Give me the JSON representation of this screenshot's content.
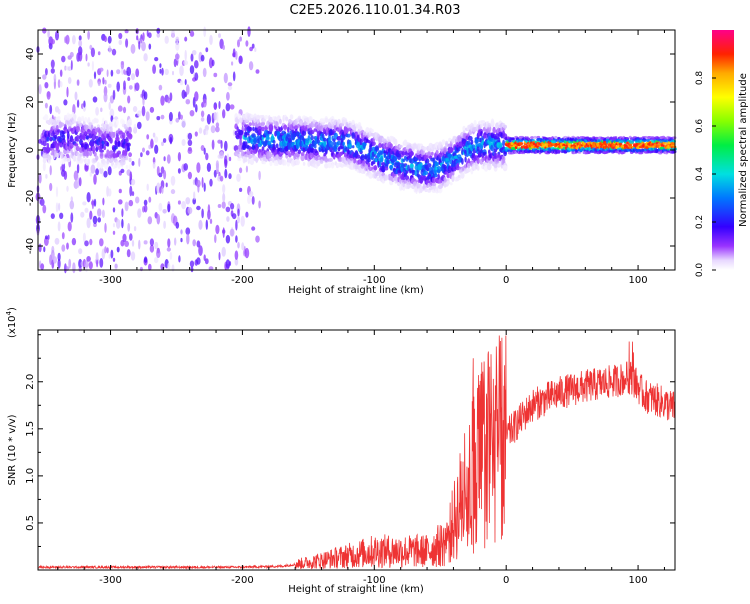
{
  "title": "C2E5.2026.110.01.34.R03",
  "chart_data": [
    {
      "type": "heatmap",
      "name": "spectrogram",
      "xlabel": "Height of straight line (km)",
      "ylabel": "Frequency (Hz)",
      "xlim": [
        -355,
        128
      ],
      "ylim": [
        -50,
        50
      ],
      "xticks": [
        -300,
        -200,
        -100,
        0,
        100
      ],
      "yticks": [
        -40,
        -20,
        0,
        20,
        40
      ],
      "noise_region_x": [
        -355,
        -180
      ],
      "signal_ridge": {
        "x": [
          -350,
          -330,
          -300,
          -280,
          -200,
          -180,
          -160,
          -140,
          -120,
          -100,
          -80,
          -60,
          -50,
          -40,
          -30,
          -20,
          -10,
          0,
          40,
          90,
          128
        ],
        "y": [
          4,
          5,
          2,
          3,
          5,
          4,
          4,
          3,
          3,
          -2,
          -6,
          -8,
          -7,
          -4,
          0,
          2,
          2,
          2,
          2,
          2,
          2
        ]
      },
      "colorbar": {
        "label": "Normalized spectral amplitude",
        "range": [
          0.0,
          1.0
        ],
        "ticks": [
          0.0,
          0.2,
          0.4,
          0.6,
          0.8
        ],
        "tick_labels": [
          "0.0",
          "0.2",
          "0.4",
          "0.6",
          "0.8"
        ]
      }
    },
    {
      "type": "line",
      "name": "snr",
      "xlabel": "Height of straight line (km)",
      "ylabel": "SNR (10 * v/v)",
      "multiplier_label": "(x10",
      "multiplier_exp": "4",
      "xlim": [
        -355,
        128
      ],
      "ylim": [
        0,
        2.55
      ],
      "xticks": [
        -300,
        -200,
        -100,
        0,
        100
      ],
      "yticks": [
        0.5,
        1.0,
        1.5,
        2.0
      ],
      "color": "#ee3333",
      "envelope": {
        "x": [
          -355,
          -300,
          -200,
          -170,
          -150,
          -120,
          -100,
          -80,
          -60,
          -45,
          -35,
          -25,
          -15,
          -5,
          5,
          20,
          40,
          60,
          80,
          95,
          105,
          115,
          128
        ],
        "y": [
          0.03,
          0.03,
          0.03,
          0.04,
          0.08,
          0.15,
          0.2,
          0.2,
          0.2,
          0.3,
          0.7,
          1.1,
          1.3,
          1.35,
          1.5,
          1.75,
          1.88,
          1.95,
          2.0,
          2.05,
          1.85,
          1.8,
          1.72
        ]
      }
    }
  ]
}
